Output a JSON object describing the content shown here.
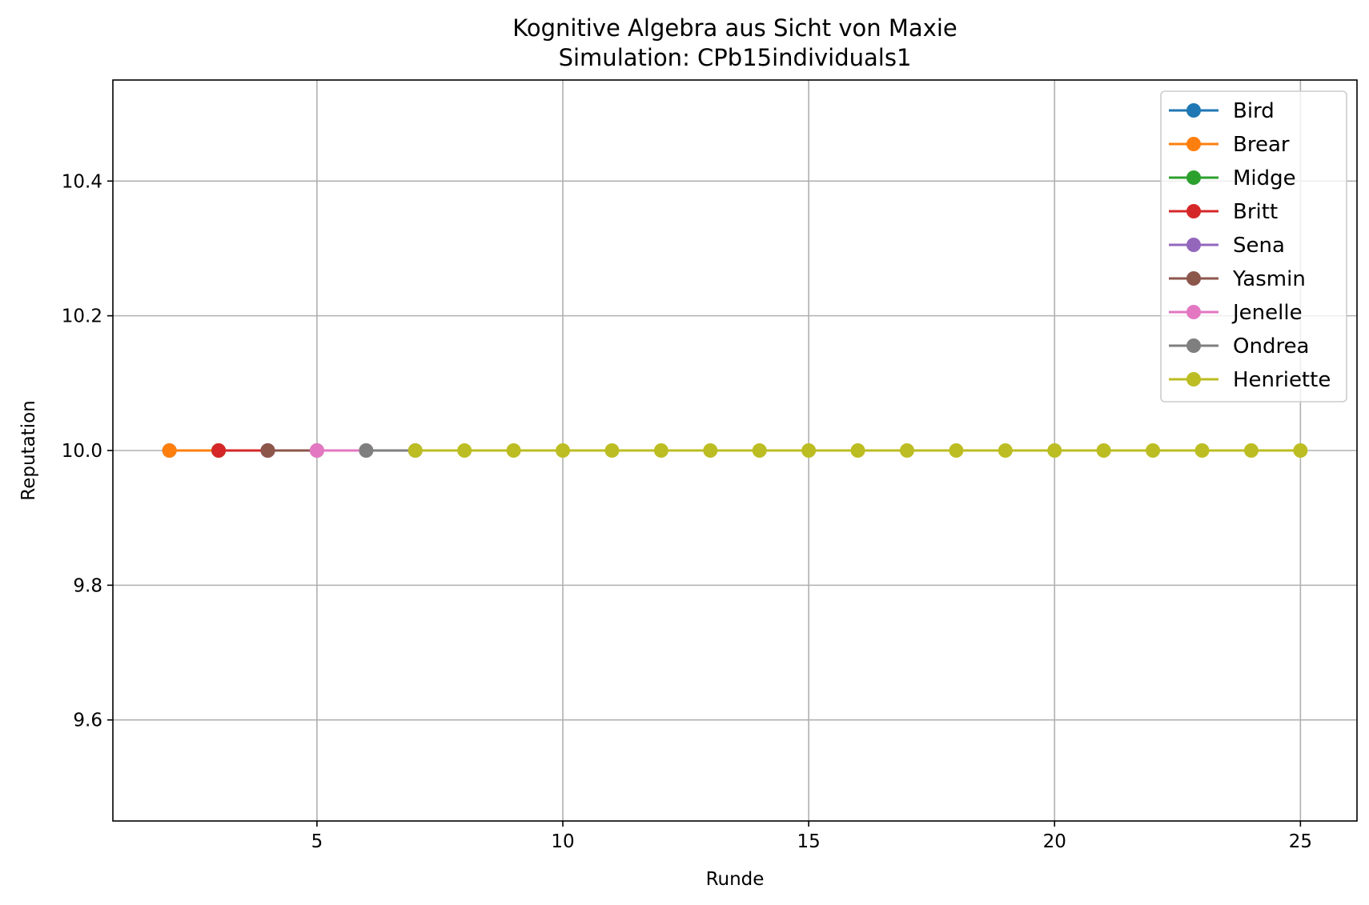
{
  "chart_data": {
    "type": "line",
    "title": "Kognitive Algebra aus Sicht von Maxie",
    "subtitle": "Simulation: CPb15individuals1",
    "xlabel": "Runde",
    "ylabel": "Reputation",
    "xlim": [
      0.85,
      26.15
    ],
    "ylim": [
      9.45,
      10.55
    ],
    "xticks": [
      5,
      10,
      15,
      20,
      25
    ],
    "xtick_labels": [
      "5",
      "10",
      "15",
      "20",
      "25"
    ],
    "yticks": [
      9.6,
      9.8,
      10.0,
      10.2,
      10.4
    ],
    "ytick_labels": [
      "9.6",
      "9.8",
      "10.0",
      "10.2",
      "10.4"
    ],
    "grid": true,
    "legend_position": "top-right",
    "series": [
      {
        "name": "Bird",
        "color": "#1f77b4",
        "x": [
          2
        ],
        "y": [
          10.0
        ]
      },
      {
        "name": "Brear",
        "color": "#ff7f0e",
        "x": [
          2,
          3
        ],
        "y": [
          10.0,
          10.0
        ]
      },
      {
        "name": "Midge",
        "color": "#2ca02c",
        "x": [
          3
        ],
        "y": [
          10.0
        ]
      },
      {
        "name": "Britt",
        "color": "#d62728",
        "x": [
          3,
          4
        ],
        "y": [
          10.0,
          10.0
        ]
      },
      {
        "name": "Sena",
        "color": "#9467bd",
        "x": [
          4
        ],
        "y": [
          10.0
        ]
      },
      {
        "name": "Yasmin",
        "color": "#8c564b",
        "x": [
          4,
          5
        ],
        "y": [
          10.0,
          10.0
        ]
      },
      {
        "name": "Jenelle",
        "color": "#e377c2",
        "x": [
          5,
          6
        ],
        "y": [
          10.0,
          10.0
        ]
      },
      {
        "name": "Ondrea",
        "color": "#7f7f7f",
        "x": [
          6,
          7
        ],
        "y": [
          10.0,
          10.0
        ]
      },
      {
        "name": "Henriette",
        "color": "#bcbd22",
        "x": [
          7,
          8,
          9,
          10,
          11,
          12,
          13,
          14,
          15,
          16,
          17,
          18,
          19,
          20,
          21,
          22,
          23,
          24,
          25
        ],
        "y": [
          10.0,
          10.0,
          10.0,
          10.0,
          10.0,
          10.0,
          10.0,
          10.0,
          10.0,
          10.0,
          10.0,
          10.0,
          10.0,
          10.0,
          10.0,
          10.0,
          10.0,
          10.0,
          10.0
        ]
      }
    ]
  }
}
